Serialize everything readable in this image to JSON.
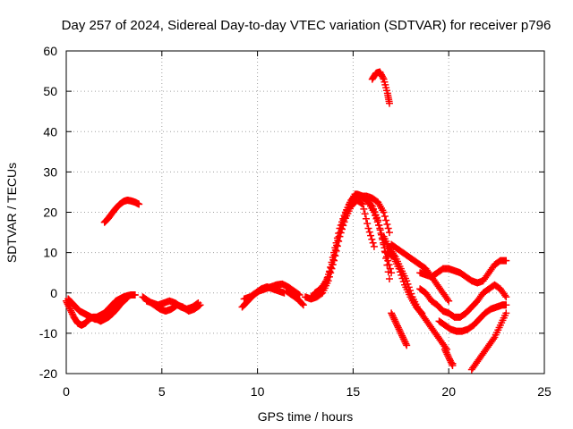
{
  "chart_data": {
    "type": "scatter",
    "title": "Day 257 of 2024, Sidereal Day-to-day VTEC variation (SDTVAR) for receiver p796",
    "xlabel": "GPS time / hours",
    "ylabel": "SDTVAR / TECUs",
    "xlim": [
      0,
      25
    ],
    "ylim": [
      -20,
      60
    ],
    "xticks": [
      0,
      5,
      10,
      15,
      20,
      25
    ],
    "yticks": [
      -20,
      -10,
      0,
      10,
      20,
      30,
      40,
      50,
      60
    ],
    "grid": true,
    "marker": "+",
    "color": "#ff0000",
    "series": [
      {
        "name": "seg-early-1",
        "x": [
          0.0,
          0.2,
          0.4,
          0.6,
          0.8,
          1.0,
          1.2,
          1.4,
          1.6,
          1.8,
          2.0,
          2.2,
          2.4,
          2.6,
          2.8,
          3.0,
          3.2,
          3.4,
          3.6
        ],
        "y": [
          -2,
          -4,
          -6,
          -7.5,
          -8,
          -7.5,
          -6.5,
          -6,
          -6,
          -5.5,
          -5,
          -4,
          -3,
          -2,
          -1.5,
          -1,
          -0.7,
          -0.5,
          -0.5
        ]
      },
      {
        "name": "seg-early-2",
        "x": [
          0.1,
          0.3,
          0.5,
          0.7,
          0.9,
          1.1,
          1.3,
          1.5,
          1.7,
          1.9,
          2.1,
          2.3,
          2.5,
          2.7
        ],
        "y": [
          -1.5,
          -2.5,
          -3.5,
          -4.5,
          -5,
          -5.5,
          -6,
          -6.5,
          -6.5,
          -6,
          -5.5,
          -5,
          -4,
          -3
        ]
      },
      {
        "name": "seg-early-3",
        "x": [
          1.6,
          1.8,
          2.0,
          2.2,
          2.4,
          2.6,
          2.8,
          3.0,
          3.2
        ],
        "y": [
          -6.5,
          -7,
          -6.5,
          -6,
          -5.2,
          -4.2,
          -3,
          -2,
          -1.2
        ]
      },
      {
        "name": "seg-early-4",
        "x": [
          4.0,
          4.3,
          4.6,
          4.9,
          5.2,
          5.5,
          5.8,
          6.1,
          6.4,
          6.7,
          7.0
        ],
        "y": [
          -1,
          -2,
          -3,
          -4,
          -4.5,
          -4,
          -3,
          -3.5,
          -4.5,
          -4,
          -3
        ]
      },
      {
        "name": "seg-early-5",
        "x": [
          4.2,
          4.5,
          4.8,
          5.1,
          5.4,
          5.7,
          6.0,
          6.3,
          6.6,
          6.9
        ],
        "y": [
          -2,
          -2.5,
          -3,
          -2.5,
          -2,
          -2.5,
          -3.5,
          -4,
          -3.5,
          -2.5
        ]
      },
      {
        "name": "seg-arc-20",
        "x": [
          2.0,
          2.2,
          2.4,
          2.6,
          2.8,
          3.0,
          3.2,
          3.4,
          3.6,
          3.8
        ],
        "y": [
          17.5,
          18.5,
          19.8,
          21,
          22,
          22.7,
          23,
          22.8,
          22.5,
          22
        ]
      },
      {
        "name": "seg-mid-1",
        "x": [
          9.2,
          9.5,
          9.8,
          10.1,
          10.4,
          10.7,
          11.0,
          11.3,
          11.6,
          11.9,
          12.2
        ],
        "y": [
          -3.5,
          -2,
          -0.5,
          0.5,
          1,
          1.5,
          2,
          2.2,
          1.5,
          0.5,
          -0.5
        ]
      },
      {
        "name": "seg-mid-2",
        "x": [
          9.3,
          9.6,
          9.9,
          10.2,
          10.5,
          10.8,
          11.1,
          11.4
        ],
        "y": [
          -1.5,
          -1,
          0,
          1,
          1.5,
          1,
          0.5,
          0
        ]
      },
      {
        "name": "seg-mid-3",
        "x": [
          11.5,
          11.8,
          12.1,
          12.4
        ],
        "y": [
          0.5,
          -0.5,
          -1.5,
          -3
        ]
      },
      {
        "name": "seg-peak-a",
        "x": [
          12.5,
          12.8,
          13.1,
          13.4,
          13.7,
          14.0,
          14.3,
          14.6,
          14.9,
          15.2,
          15.5,
          15.8,
          16.1
        ],
        "y": [
          -1,
          -1.5,
          -1,
          0,
          3,
          8,
          14,
          18.5,
          21.5,
          23,
          22,
          16,
          11.5
        ]
      },
      {
        "name": "seg-peak-b",
        "x": [
          12.8,
          13.1,
          13.4,
          13.7,
          14.0,
          14.3,
          14.6,
          14.9,
          15.2,
          15.5,
          15.8,
          16.1,
          16.4,
          16.7,
          17.0
        ],
        "y": [
          -1,
          -0.5,
          1,
          4,
          10,
          16,
          20,
          23,
          24.5,
          24,
          22.5,
          20,
          16,
          10,
          5
        ]
      },
      {
        "name": "seg-peak-c",
        "x": [
          13.0,
          13.3,
          13.6,
          13.9,
          14.2,
          14.5,
          14.8,
          15.1,
          15.4,
          15.7,
          16.0,
          16.3,
          16.6,
          16.9
        ],
        "y": [
          0,
          1,
          3,
          7,
          13,
          18,
          22,
          24.5,
          24,
          23,
          21.5,
          18,
          12,
          3.5
        ]
      },
      {
        "name": "seg-peak-d",
        "x": [
          15.4,
          15.7,
          16.0,
          16.3,
          16.6,
          16.9
        ],
        "y": [
          24,
          24,
          23.5,
          22.5,
          20,
          15
        ]
      },
      {
        "name": "seg-arc-50",
        "x": [
          16.0,
          16.2,
          16.4,
          16.6,
          16.8,
          16.9
        ],
        "y": [
          53,
          54.5,
          54.8,
          53,
          49.5,
          47
        ]
      },
      {
        "name": "seg-late-1",
        "x": [
          16.6,
          16.9,
          17.2,
          17.5,
          17.8,
          18.1,
          18.4,
          18.7,
          19.0,
          19.3,
          19.6,
          19.9
        ],
        "y": [
          14,
          11,
          9,
          6,
          3,
          -1,
          -4,
          -6,
          -8,
          -10,
          -12,
          -14
        ]
      },
      {
        "name": "seg-late-2",
        "x": [
          17.0,
          17.2,
          17.4,
          17.6,
          17.8
        ],
        "y": [
          -5,
          -7,
          -9,
          -11,
          -13
        ]
      },
      {
        "name": "seg-late-3",
        "x": [
          16.8,
          17.1,
          17.4,
          17.7,
          18.0,
          18.3,
          18.6
        ],
        "y": [
          10,
          9,
          6,
          2,
          -1,
          -3.5,
          -5
        ]
      },
      {
        "name": "seg-late-4",
        "x": [
          17.0,
          17.3,
          17.6,
          17.9,
          18.2,
          18.5,
          18.8,
          19.1,
          19.4,
          19.7,
          20.0
        ],
        "y": [
          12,
          11,
          10,
          9,
          8,
          7,
          6,
          4,
          2,
          0,
          -2
        ]
      },
      {
        "name": "seg-late-5",
        "x": [
          18.5,
          18.8,
          19.1,
          19.4,
          19.7,
          20.0,
          20.3,
          20.6,
          20.9,
          21.2,
          21.5,
          21.8,
          22.1,
          22.4,
          22.7,
          23.0
        ],
        "y": [
          5,
          4.5,
          4,
          5,
          6,
          6,
          5.5,
          5,
          4,
          3,
          2.5,
          3,
          5,
          7,
          8,
          8
        ]
      },
      {
        "name": "seg-late-6",
        "x": [
          18.5,
          18.8,
          19.1,
          19.4,
          19.7,
          20.0,
          20.3,
          20.6,
          20.9,
          21.2,
          21.5,
          21.8,
          22.1,
          22.4,
          22.7,
          23.0
        ],
        "y": [
          1,
          0,
          -2,
          -3,
          -4.5,
          -5,
          -6,
          -6,
          -5,
          -3.5,
          -2,
          0,
          1,
          2,
          1,
          -1
        ]
      },
      {
        "name": "seg-late-7",
        "x": [
          19.5,
          19.8,
          20.1,
          20.4,
          20.7,
          21.0,
          21.3,
          21.6,
          21.9,
          22.2,
          22.5,
          22.8,
          23.0
        ],
        "y": [
          -7,
          -8,
          -9,
          -9.5,
          -9.5,
          -9,
          -8,
          -6.5,
          -5,
          -4,
          -3.5,
          -3,
          -3
        ]
      },
      {
        "name": "seg-late-8",
        "x": [
          21.2,
          21.5,
          21.8,
          22.1,
          22.4,
          22.7,
          23.0
        ],
        "y": [
          -19,
          -17,
          -15,
          -13,
          -11,
          -8,
          -5
        ]
      },
      {
        "name": "seg-late-9",
        "x": [
          20.2
        ],
        "y": [
          -17.5
        ]
      },
      {
        "name": "seg-late-10",
        "x": [
          19.8,
          20.0,
          20.2
        ],
        "y": [
          -14,
          -16,
          -18
        ]
      }
    ]
  }
}
